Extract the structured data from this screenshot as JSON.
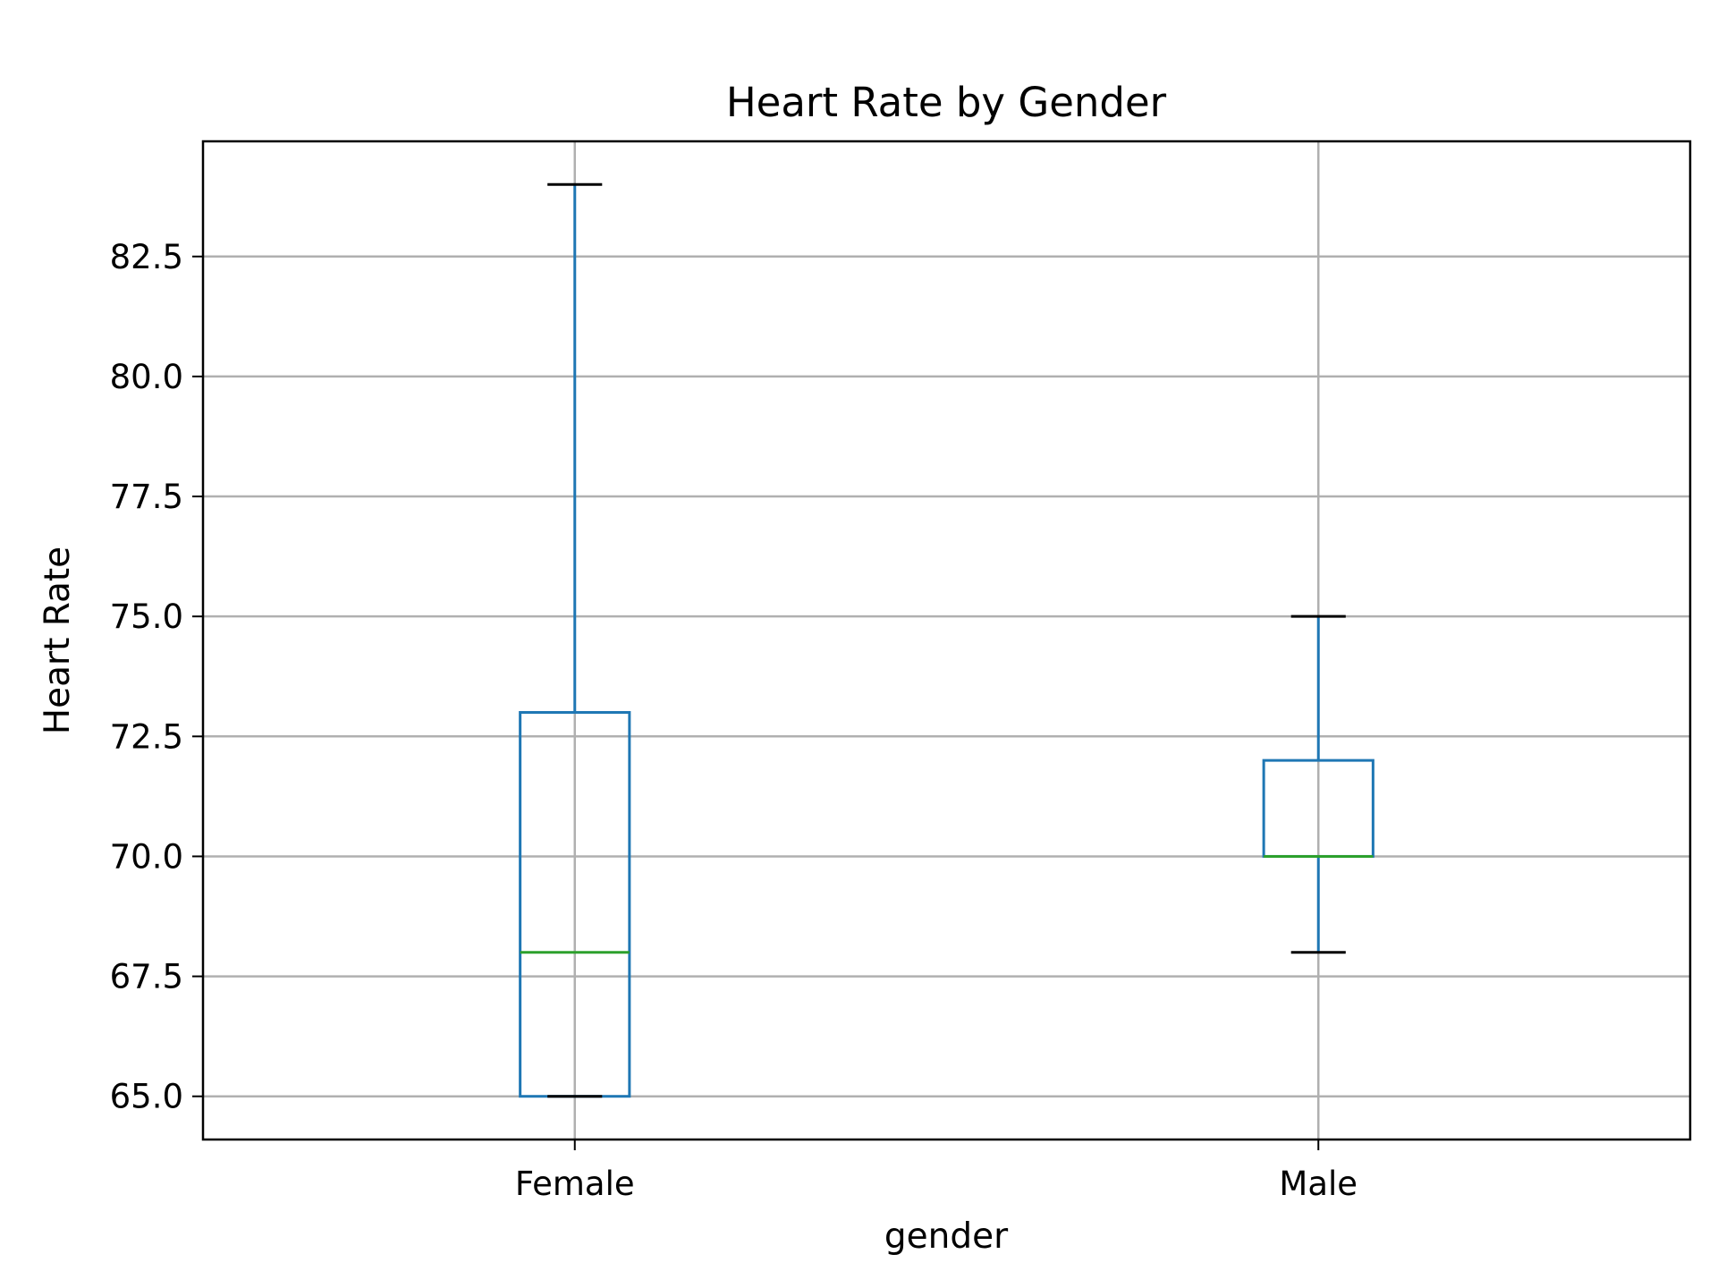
{
  "chart_data": {
    "type": "box",
    "title": "Heart Rate by Gender",
    "xlabel": "gender",
    "ylabel": "Heart Rate",
    "categories": [
      "Female",
      "Male"
    ],
    "ylim": [
      64.1,
      84.9
    ],
    "yticks": [
      65.0,
      67.5,
      70.0,
      72.5,
      75.0,
      77.5,
      80.0,
      82.5
    ],
    "ytick_labels": [
      "65.0",
      "67.5",
      "70.0",
      "72.5",
      "75.0",
      "77.5",
      "80.0",
      "82.5"
    ],
    "grid": true,
    "boxes": [
      {
        "category": "Female",
        "whisker_low": 65,
        "q1": 65,
        "median": 68,
        "q3": 73,
        "whisker_high": 84
      },
      {
        "category": "Male",
        "whisker_low": 68,
        "q1": 70,
        "median": 70,
        "q3": 72,
        "whisker_high": 75
      }
    ],
    "colors": {
      "box": "#1f77b4",
      "median": "#2ca02c",
      "cap": "#000000",
      "grid": "#b0b0b0"
    }
  }
}
